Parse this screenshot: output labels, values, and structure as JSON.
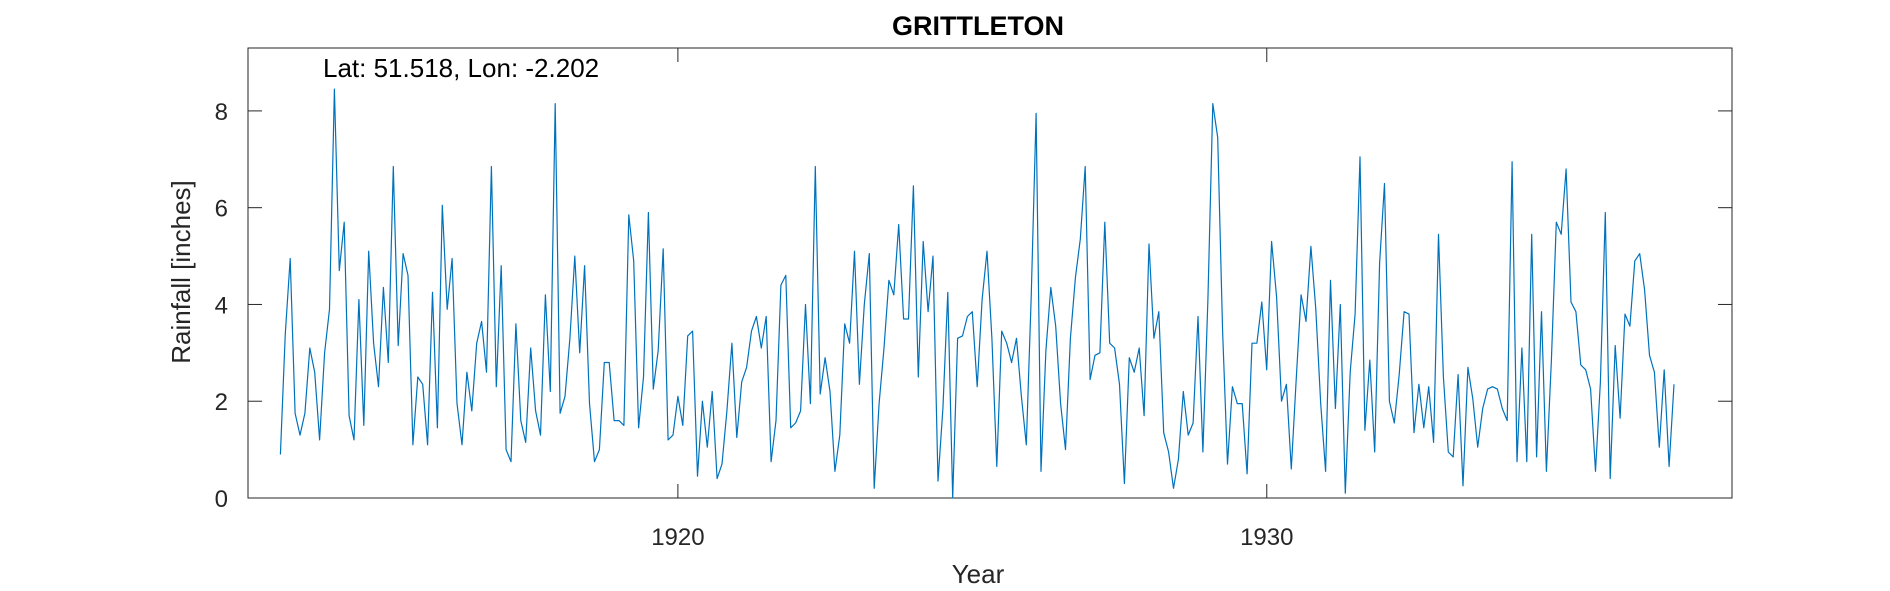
{
  "chart_data": {
    "type": "line",
    "title": "GRITTLETON",
    "annotation": "Lat: 51.518, Lon: -2.202",
    "xlabel": "Year",
    "ylabel": "Rainfall [inches]",
    "xlim": [
      1912.7,
      1937.9
    ],
    "ylim": [
      0,
      9.3
    ],
    "xticks": [
      1920,
      1930
    ],
    "xtick_labels": [
      "1920",
      "1930"
    ],
    "yticks": [
      0,
      2,
      4,
      6,
      8
    ],
    "ytick_labels": [
      "0",
      "2",
      "4",
      "6",
      "8"
    ],
    "grid": false,
    "legend": "none",
    "line_color": "#0072BD",
    "series": [
      {
        "x_start": 1913.25,
        "x_step": 0.08333,
        "values": [
          0.9,
          3.4,
          4.95,
          1.75,
          1.3,
          1.75,
          3.1,
          2.6,
          1.2,
          3.0,
          3.9,
          8.45,
          4.7,
          5.7,
          1.7,
          1.2,
          4.1,
          1.5,
          5.1,
          3.2,
          2.3,
          4.35,
          2.8,
          6.85,
          3.15,
          5.05,
          4.6,
          1.1,
          2.5,
          2.35,
          1.1,
          4.25,
          1.45,
          6.05,
          3.9,
          4.95,
          1.95,
          1.1,
          2.6,
          1.8,
          3.2,
          3.65,
          2.6,
          6.85,
          2.3,
          4.8,
          1.0,
          0.75,
          3.6,
          1.6,
          1.15,
          3.1,
          1.8,
          1.3,
          4.2,
          2.2,
          8.15,
          1.75,
          2.1,
          3.3,
          5.0,
          3.0,
          4.8,
          1.95,
          0.75,
          1.0,
          2.8,
          2.8,
          1.6,
          1.6,
          1.5,
          5.85,
          4.9,
          1.45,
          2.5,
          5.9,
          2.25,
          3.05,
          5.15,
          1.2,
          1.3,
          2.1,
          1.5,
          3.35,
          3.45,
          0.45,
          2.0,
          1.05,
          2.2,
          0.4,
          0.7,
          1.8,
          3.2,
          1.25,
          2.4,
          2.7,
          3.45,
          3.75,
          3.1,
          3.75,
          0.75,
          1.6,
          4.4,
          4.6,
          1.45,
          1.55,
          1.8,
          4.0,
          1.95,
          6.85,
          2.15,
          2.9,
          2.2,
          0.55,
          1.3,
          3.6,
          3.2,
          5.1,
          2.35,
          4.0,
          5.05,
          0.2,
          1.95,
          3.1,
          4.5,
          4.2,
          5.65,
          3.7,
          3.7,
          6.45,
          2.5,
          5.3,
          3.85,
          5.0,
          0.35,
          1.85,
          4.25,
          0.0,
          3.3,
          3.35,
          3.75,
          3.85,
          2.3,
          4.1,
          5.1,
          3.3,
          0.65,
          3.45,
          3.2,
          2.8,
          3.3,
          2.1,
          1.1,
          4.15,
          7.95,
          0.55,
          3.05,
          4.35,
          3.55,
          1.95,
          1.0,
          3.3,
          4.55,
          5.35,
          6.85,
          2.45,
          2.95,
          3.0,
          5.7,
          3.2,
          3.1,
          2.35,
          0.3,
          2.9,
          2.6,
          3.1,
          1.7,
          5.25,
          3.3,
          3.85,
          1.35,
          0.95,
          0.2,
          0.8,
          2.2,
          1.3,
          1.55,
          3.75,
          0.95,
          4.1,
          8.15,
          7.45,
          3.45,
          0.7,
          2.3,
          1.95,
          1.95,
          0.5,
          3.2,
          3.2,
          4.05,
          2.65,
          5.3,
          4.15,
          2.0,
          2.35,
          0.6,
          2.45,
          4.2,
          3.65,
          5.2,
          3.9,
          1.95,
          0.55,
          4.5,
          1.85,
          4.0,
          0.1,
          2.6,
          3.8,
          7.05,
          1.4,
          2.85,
          0.95,
          4.85,
          6.5,
          2.0,
          1.55,
          2.55,
          3.85,
          3.8,
          1.35,
          2.35,
          1.45,
          2.3,
          1.15,
          5.45,
          2.5,
          0.95,
          0.85,
          2.55,
          0.25,
          2.7,
          2.05,
          1.05,
          1.85,
          2.25,
          2.3,
          2.25,
          1.85,
          1.6,
          6.95,
          0.75,
          3.1,
          0.75,
          5.45,
          0.85,
          3.85,
          0.55,
          2.85,
          5.7,
          5.45,
          6.8,
          4.05,
          3.85,
          2.75,
          2.65,
          2.25,
          0.55,
          2.4,
          5.9,
          0.4,
          3.15,
          1.65,
          3.8,
          3.55,
          4.9,
          5.05,
          4.3,
          2.95,
          2.6,
          1.05,
          2.65,
          0.65,
          2.35
        ]
      }
    ]
  }
}
